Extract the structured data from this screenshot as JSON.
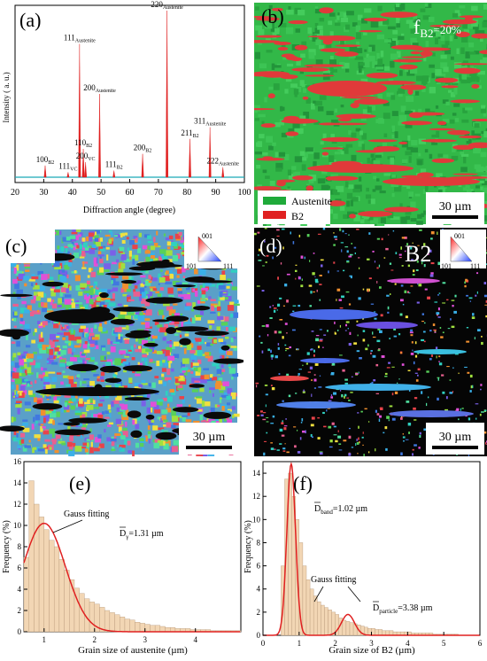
{
  "panels": {
    "a": {
      "letter": "(a)",
      "xlabel": "Diffraction angle (degree)",
      "ylabel": "Intensity ( a. u.)",
      "xticks": [
        "20",
        "30",
        "40",
        "50",
        "60",
        "70",
        "80",
        "90",
        "100"
      ],
      "peaks": [
        {
          "x": 30.5,
          "h": 0.07,
          "label": "100",
          "sub": "B2"
        },
        {
          "x": 38.5,
          "h": 0.03,
          "label": "111",
          "sub": "VC"
        },
        {
          "x": 42.5,
          "h": 0.8,
          "label": "111",
          "sub": "Austenite"
        },
        {
          "x": 43.8,
          "h": 0.17,
          "label": "110",
          "sub": "B2"
        },
        {
          "x": 44.6,
          "h": 0.09,
          "label": "200",
          "sub": "VC"
        },
        {
          "x": 49.5,
          "h": 0.5,
          "label": "200",
          "sub": "Austenite"
        },
        {
          "x": 54.5,
          "h": 0.04,
          "label": "111",
          "sub": "B2"
        },
        {
          "x": 64.5,
          "h": 0.14,
          "label": "200",
          "sub": "B2"
        },
        {
          "x": 73.0,
          "h": 1.0,
          "label": "220",
          "sub": "Austenite"
        },
        {
          "x": 81.0,
          "h": 0.23,
          "label": "211",
          "sub": "B2"
        },
        {
          "x": 88.0,
          "h": 0.3,
          "label": "311",
          "sub": "Austenite"
        },
        {
          "x": 92.5,
          "h": 0.06,
          "label": "222",
          "sub": "Austenite"
        }
      ]
    },
    "b": {
      "letter": "(b)",
      "fraction_prefix": "f",
      "fraction_sub": "B2",
      "fraction_value": "=20%",
      "legend": [
        {
          "name": "Austenite",
          "color": "#1faa3a"
        },
        {
          "name": "B2",
          "color": "#e02020"
        }
      ],
      "scale": "30 µm"
    },
    "c": {
      "letter": "(c)",
      "scale": "30 µm",
      "ipf": {
        "top": "001",
        "left": "101",
        "right": "111"
      }
    },
    "d": {
      "letter": "(d)",
      "title": "B2",
      "scale": "30 µm",
      "ipf": {
        "top": "001",
        "left": "101",
        "right": "111"
      }
    },
    "e": {
      "letter": "(e)",
      "annotation": "Gauss fitting",
      "mean_label": "D",
      "mean_sub": "γ",
      "mean_value": "=1.31 µm",
      "xlabel": "Grain size of austenite (µm)",
      "ylabel": "Frequency (%)",
      "yticks": [
        "0",
        "2",
        "4",
        "6",
        "8",
        "10",
        "12",
        "14",
        "16"
      ],
      "xticks": [
        "1",
        "2",
        "3",
        "4"
      ]
    },
    "f": {
      "letter": "(f)",
      "annotation": "Gauss fitting",
      "band_label": "D",
      "band_sub": "band",
      "band_value": "=1.02 µm",
      "particle_label": "D",
      "particle_sub": "particle",
      "particle_value": "=3.38 µm",
      "xlabel": "Grain size of B2 (µm)",
      "ylabel": "Frequency (%)",
      "yticks": [
        "0",
        "2",
        "4",
        "6",
        "8",
        "10",
        "12",
        "14"
      ],
      "xticks": [
        "0",
        "1",
        "2",
        "3",
        "4",
        "5",
        "6"
      ]
    }
  },
  "chart_data": [
    {
      "type": "line",
      "panel": "a",
      "xlabel": "Diffraction angle (degree)",
      "ylabel": "Intensity ( a. u.)",
      "xlim": [
        20,
        100
      ],
      "peaks_x": [
        30.5,
        38.5,
        42.5,
        43.8,
        44.6,
        49.5,
        54.5,
        64.5,
        73.0,
        81.0,
        88.0,
        92.5
      ],
      "peaks_rel_intensity": [
        0.07,
        0.03,
        0.8,
        0.17,
        0.09,
        0.5,
        0.04,
        0.14,
        1.0,
        0.23,
        0.3,
        0.06
      ]
    },
    {
      "type": "bar",
      "panel": "e",
      "xlabel": "Grain size of austenite (µm)",
      "ylabel": "Frequency (%)",
      "xlim": [
        0.6,
        4.9
      ],
      "ylim": [
        0,
        16
      ],
      "bin_width": 0.1,
      "bin_start": 0.6,
      "values": [
        7.0,
        14.2,
        12.0,
        10.8,
        9.6,
        8.6,
        8.0,
        6.8,
        5.8,
        4.9,
        4.1,
        3.6,
        3.1,
        2.8,
        2.6,
        2.3,
        2.0,
        1.8,
        1.6,
        1.4,
        1.2,
        1.1,
        0.9,
        0.8,
        0.7,
        0.6,
        0.6,
        0.5,
        0.4,
        0.4,
        0.3,
        0.3,
        0.3,
        0.2,
        0.2,
        0.2,
        0.2,
        0.1,
        0.1,
        0.1,
        0.1,
        0.1,
        0.1
      ],
      "fit": {
        "mu": 1.0,
        "sigma": 0.42,
        "peak": 10.2
      }
    },
    {
      "type": "bar",
      "panel": "f",
      "xlabel": "Grain size of B2 (µm)",
      "ylabel": "Frequency (%)",
      "xlim": [
        0,
        6
      ],
      "ylim": [
        0,
        15
      ],
      "bin_width": 0.1,
      "bin_start": 0.5,
      "values": [
        6.0,
        13.5,
        14.0,
        12.0,
        10.0,
        8.0,
        6.0,
        4.8,
        4.0,
        3.4,
        2.9,
        2.6,
        2.4,
        2.2,
        2.0,
        1.8,
        1.5,
        1.3,
        1.2,
        1.1,
        1.0,
        0.9,
        0.8,
        0.7,
        0.6,
        0.6,
        0.5,
        0.5,
        0.4,
        0.4,
        0.4,
        0.3,
        0.3,
        0.3,
        0.3,
        0.3,
        0.2,
        0.2,
        0.2,
        0.2,
        0.2,
        0.2,
        0.1,
        0.1,
        0.1,
        0.1,
        0.1,
        0.1,
        0.1
      ],
      "fit_band": {
        "mu": 0.78,
        "sigma": 0.12,
        "peak": 14.8
      },
      "fit_particle": {
        "mu": 2.35,
        "sigma": 0.18,
        "peak": 1.8
      }
    }
  ]
}
